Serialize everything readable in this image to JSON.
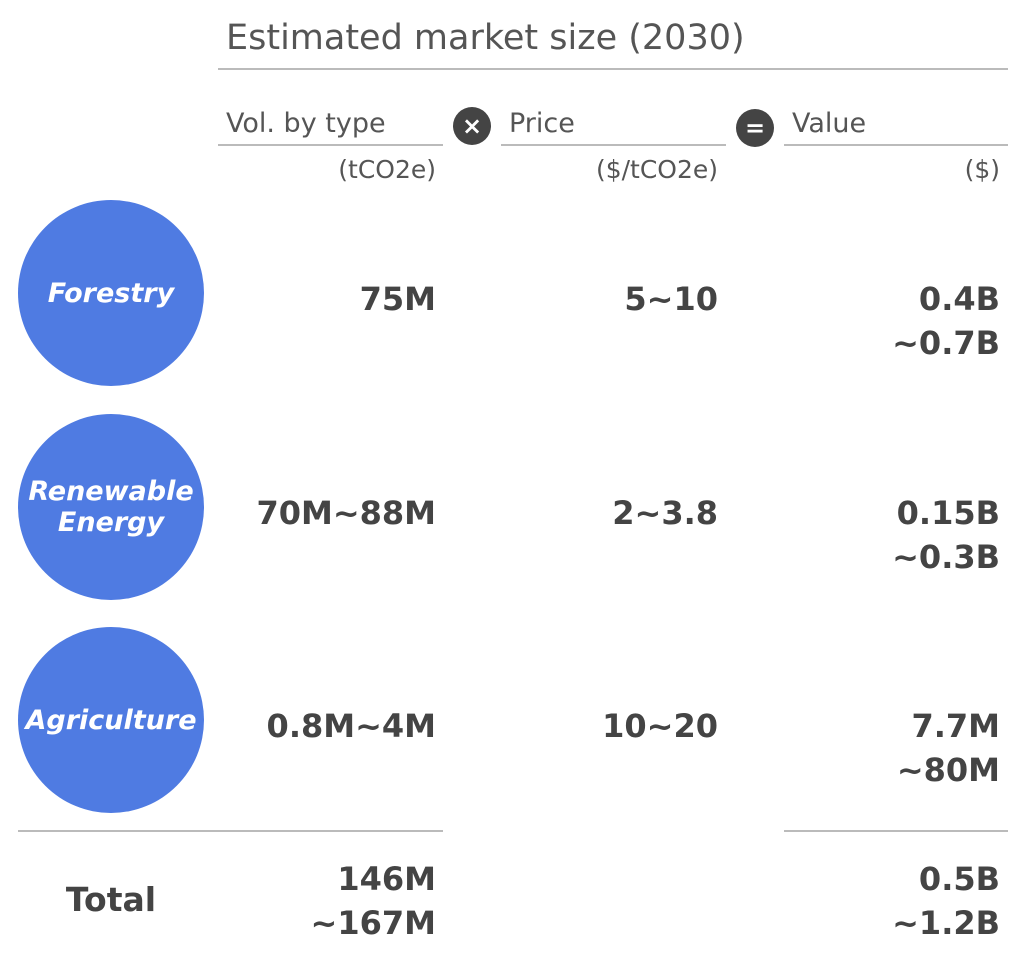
{
  "header": {
    "title": "Estimated market size (2030)"
  },
  "columns": [
    {
      "label": "Vol. by type",
      "unit": "(tCO2e)"
    },
    {
      "label": "Price",
      "unit": "($/tCO2e)"
    },
    {
      "label": "Value",
      "unit": "($)"
    }
  ],
  "rows": [
    {
      "label": [
        "Forestry"
      ],
      "volume": [
        "75M"
      ],
      "price": [
        "5~10"
      ],
      "value": [
        "0.4B",
        "~0.7B"
      ]
    },
    {
      "label": [
        "Renewable",
        "Energy"
      ],
      "volume": [
        "70M~88M"
      ],
      "price": [
        "2~3.8"
      ],
      "value": [
        "0.15B",
        "~0.3B"
      ]
    },
    {
      "label": [
        "Agriculture"
      ],
      "volume": [
        "0.8M~4M"
      ],
      "price": [
        "10~20"
      ],
      "value": [
        "7.7M",
        "~80M"
      ]
    }
  ],
  "total": {
    "label": "Total",
    "volume": [
      "146M",
      "~167M"
    ],
    "value": [
      "0.5B",
      "~1.2B"
    ]
  }
}
